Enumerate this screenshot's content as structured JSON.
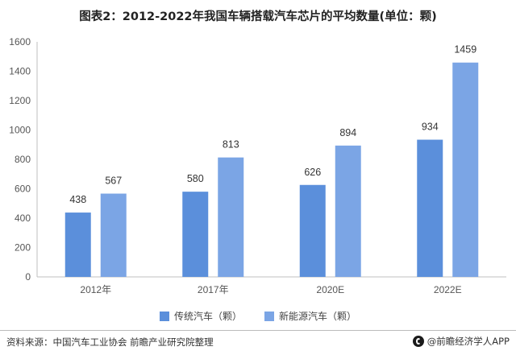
{
  "title": "图表2：2012-2022年我国车辆搭载汽车芯片的平均数量(单位：颗)",
  "chart_data": {
    "type": "bar",
    "categories": [
      "2012年",
      "2017年",
      "2020E",
      "2022E"
    ],
    "series": [
      {
        "name": "传统汽车（颗）",
        "values": [
          438,
          580,
          626,
          934
        ],
        "color": "#5b8fdb"
      },
      {
        "name": "新能源汽车（颗）",
        "values": [
          567,
          813,
          894,
          1459
        ],
        "color": "#7ba5e5"
      }
    ],
    "ylim": [
      0,
      1600
    ],
    "yticks": [
      0,
      200,
      400,
      600,
      800,
      1000,
      1200,
      1400,
      1600
    ],
    "grid": false,
    "legend": "bottom"
  },
  "footer": {
    "source": "资料来源：中国汽车工业协会 前瞻产业研究院整理",
    "brand": "@前瞻经济学人APP"
  }
}
